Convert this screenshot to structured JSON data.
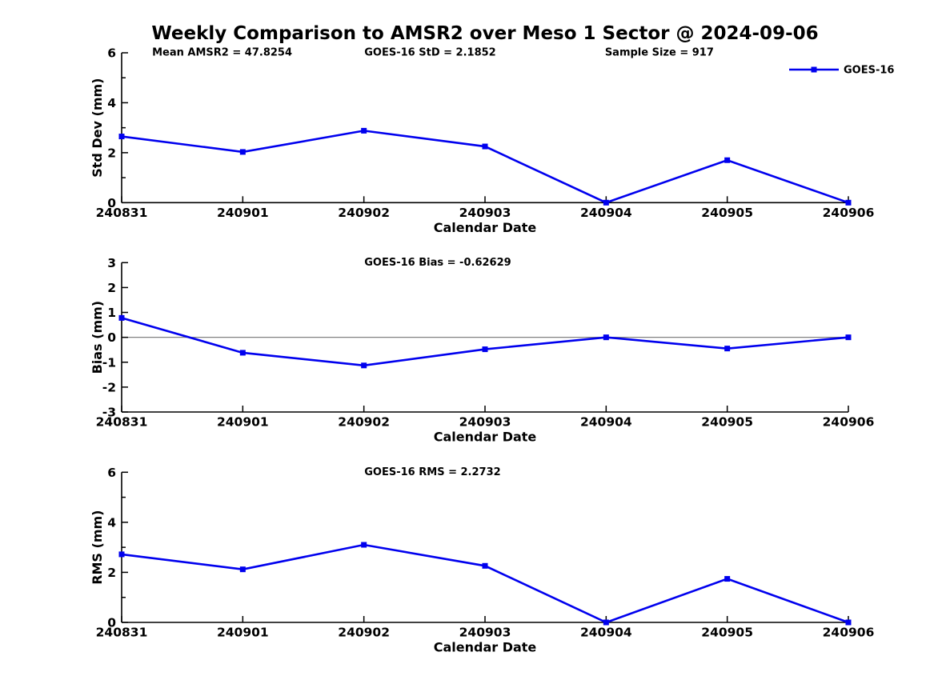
{
  "title": "Weekly Comparison to AMSR2 over Meso 1 Sector @ 2024-09-06",
  "colors": {
    "series": "#0000EE",
    "axis": "#000000",
    "zero_line": "#808080",
    "background": "#FFFFFF",
    "text": "#000000"
  },
  "legend": {
    "label": "GOES-16",
    "position": "top-right",
    "marker": "filled-square"
  },
  "chart_data": [
    {
      "type": "line",
      "title": "",
      "xlabel": "Calendar Date",
      "ylabel": "Std Dev (mm)",
      "categories": [
        "240831",
        "240901",
        "240902",
        "240903",
        "240904",
        "240905",
        "240906"
      ],
      "ylim": [
        0,
        6
      ],
      "yticks": [
        0,
        2,
        4,
        6
      ],
      "yminorticks": [
        1,
        3,
        5
      ],
      "grid": false,
      "zero_line": false,
      "show_legend": true,
      "annotations": [
        "Mean AMSR2 = 47.8254",
        "GOES-16 StD = 2.1852",
        "Sample Size = 917"
      ],
      "series": [
        {
          "name": "GOES-16",
          "values": [
            2.65,
            2.03,
            2.88,
            2.25,
            0.0,
            1.7,
            0.0
          ]
        }
      ]
    },
    {
      "type": "line",
      "title": "",
      "xlabel": "Calendar Date",
      "ylabel": "Bias (mm)",
      "categories": [
        "240831",
        "240901",
        "240902",
        "240903",
        "240904",
        "240905",
        "240906"
      ],
      "ylim": [
        -3,
        3
      ],
      "yticks": [
        -3,
        -2,
        -1,
        0,
        1,
        2,
        3
      ],
      "yminorticks": [],
      "grid": false,
      "zero_line": true,
      "show_legend": false,
      "annotations": [
        "GOES-16 Bias  = -0.62629"
      ],
      "series": [
        {
          "name": "GOES-16",
          "values": [
            0.78,
            -0.62,
            -1.13,
            -0.48,
            0.0,
            -0.45,
            0.0
          ]
        }
      ]
    },
    {
      "type": "line",
      "title": "",
      "xlabel": "Calendar Date",
      "ylabel": "RMS (mm)",
      "categories": [
        "240831",
        "240901",
        "240902",
        "240903",
        "240904",
        "240905",
        "240906"
      ],
      "ylim": [
        0,
        6
      ],
      "yticks": [
        0,
        2,
        4,
        6
      ],
      "yminorticks": [
        1,
        3,
        5
      ],
      "grid": false,
      "zero_line": false,
      "show_legend": false,
      "annotations": [
        "GOES-16 RMS = 2.2732"
      ],
      "series": [
        {
          "name": "GOES-16",
          "values": [
            2.72,
            2.12,
            3.1,
            2.26,
            0.0,
            1.74,
            0.0
          ]
        }
      ]
    }
  ]
}
